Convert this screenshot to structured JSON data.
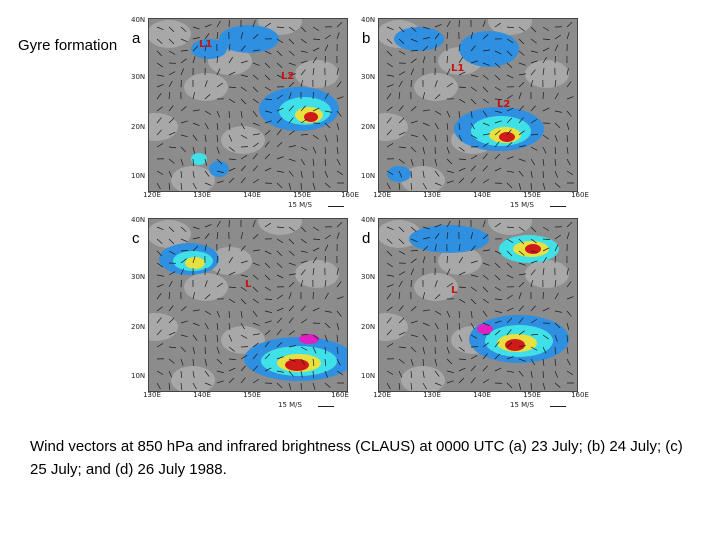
{
  "side_title": "Gyre formation",
  "caption": "Wind vectors at 850 hPa and infrared brightness (CLAUS) at 0000 UTC (a) 23 July; (b) 24 July; (c) 25 July; and (d) 26 July 1988.",
  "panels": [
    {
      "letter": "a",
      "lat_labels": [
        "40N",
        "30N",
        "20N",
        "10N"
      ],
      "lon_labels": [
        "120E",
        "130E",
        "140E",
        "150E",
        "160E"
      ],
      "ref_vector": "15 M/S",
      "lows": [
        "L1",
        "L2"
      ]
    },
    {
      "letter": "b",
      "lat_labels": [
        "40N",
        "30N",
        "20N",
        "10N"
      ],
      "lon_labels": [
        "120E",
        "130E",
        "140E",
        "150E",
        "160E"
      ],
      "ref_vector": "15 M/S",
      "lows": [
        "L1",
        "L2"
      ]
    },
    {
      "letter": "c",
      "lat_labels": [
        "40N",
        "30N",
        "20N",
        "10N"
      ],
      "lon_labels": [
        "130E",
        "140E",
        "150E",
        "160E"
      ],
      "ref_vector": "15 M/S",
      "lows": [
        "L"
      ]
    },
    {
      "letter": "d",
      "lat_labels": [
        "40N",
        "30N",
        "20N",
        "10N"
      ],
      "lon_labels": [
        "120E",
        "130E",
        "140E",
        "150E",
        "160E"
      ],
      "ref_vector": "15 M/S",
      "lows": [
        "L"
      ]
    }
  ],
  "colors": {
    "background_gray": "#8c8c8c",
    "cloud_blue": "#2f8fe0",
    "cyan": "#3fe0e8",
    "yellow": "#e8e040",
    "red": "#d01a1a",
    "magenta": "#e020c0"
  }
}
